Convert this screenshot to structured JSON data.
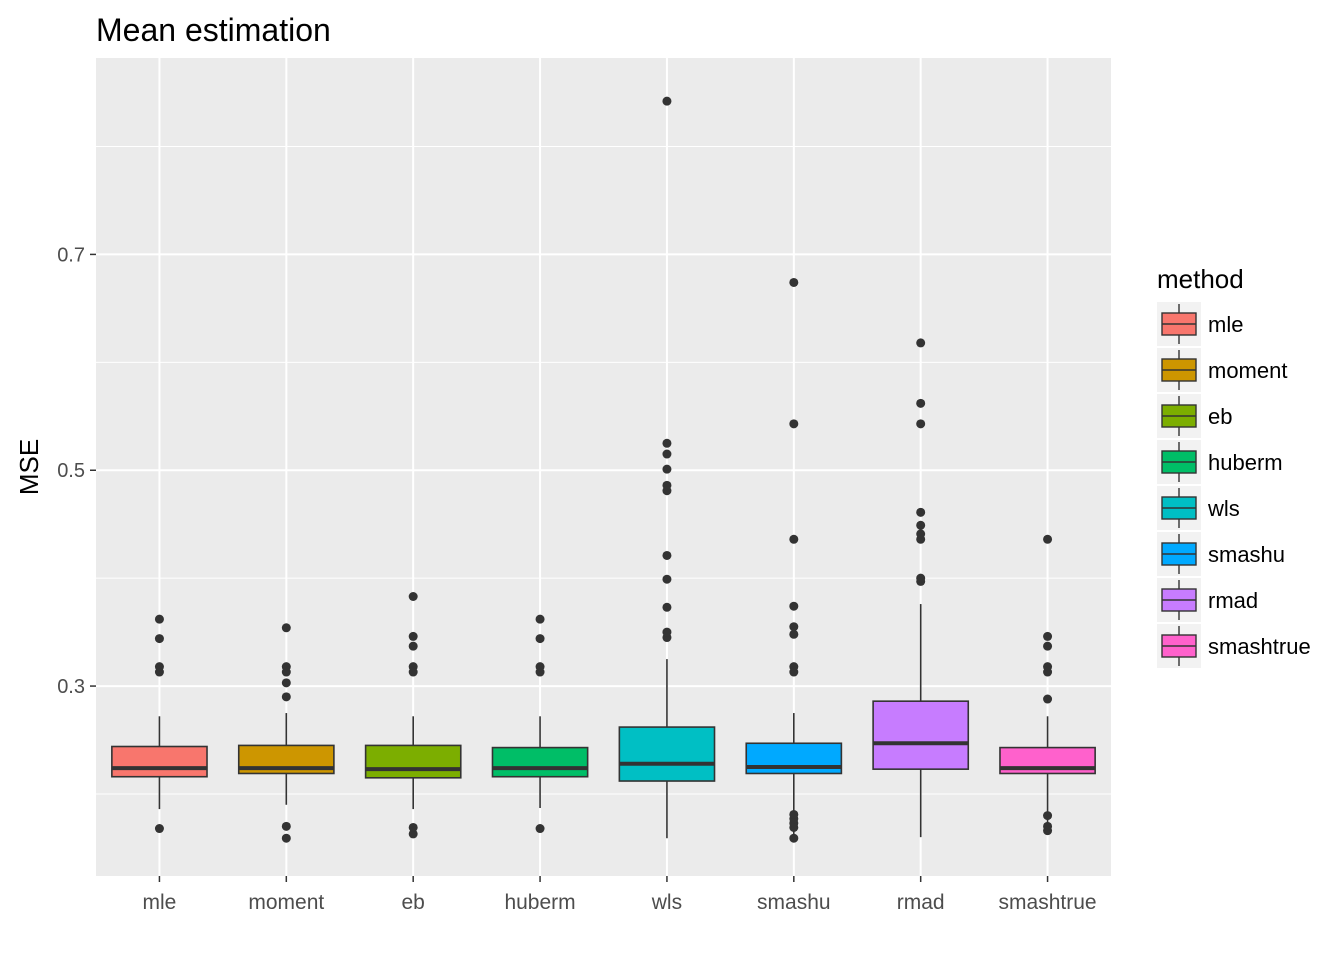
{
  "chart_data": {
    "type": "boxplot",
    "title": "Mean estimation",
    "xlabel": "",
    "ylabel": "MSE",
    "ylim": [
      0.124,
      0.882
    ],
    "y_ticks": [
      0.3,
      0.5,
      0.7
    ],
    "y_tick_labels": [
      "0.3",
      "0.5",
      "0.7"
    ],
    "y_minor_ticks": [
      0.2,
      0.4,
      0.6,
      0.8
    ],
    "grid": true,
    "legend": {
      "title": "method",
      "position": "right"
    },
    "categories": [
      "mle",
      "moment",
      "eb",
      "huberm",
      "wls",
      "smashu",
      "rmad",
      "smashtrue"
    ],
    "series": [
      {
        "name": "mle",
        "color": "#F8766D",
        "whisker_low": 0.186,
        "q1": 0.216,
        "median": 0.224,
        "q3": 0.244,
        "whisker_high": 0.272,
        "outliers": [
          0.168,
          0.313,
          0.318,
          0.344,
          0.362
        ]
      },
      {
        "name": "moment",
        "color": "#CD9600",
        "whisker_low": 0.19,
        "q1": 0.219,
        "median": 0.224,
        "q3": 0.245,
        "whisker_high": 0.275,
        "outliers": [
          0.159,
          0.17,
          0.29,
          0.303,
          0.313,
          0.318,
          0.354
        ]
      },
      {
        "name": "eb",
        "color": "#7CAE00",
        "whisker_low": 0.186,
        "q1": 0.215,
        "median": 0.223,
        "q3": 0.245,
        "whisker_high": 0.272,
        "outliers": [
          0.163,
          0.169,
          0.313,
          0.318,
          0.337,
          0.346,
          0.383
        ]
      },
      {
        "name": "huberm",
        "color": "#00BE67",
        "whisker_low": 0.187,
        "q1": 0.216,
        "median": 0.224,
        "q3": 0.243,
        "whisker_high": 0.272,
        "outliers": [
          0.168,
          0.313,
          0.318,
          0.344,
          0.362
        ]
      },
      {
        "name": "wls",
        "color": "#00BFC4",
        "whisker_low": 0.159,
        "q1": 0.212,
        "median": 0.228,
        "q3": 0.262,
        "whisker_high": 0.325,
        "outliers": [
          0.345,
          0.35,
          0.373,
          0.399,
          0.421,
          0.481,
          0.486,
          0.501,
          0.515,
          0.525,
          0.842
        ]
      },
      {
        "name": "smashu",
        "color": "#00A9FF",
        "whisker_low": 0.159,
        "q1": 0.219,
        "median": 0.225,
        "q3": 0.247,
        "whisker_high": 0.275,
        "outliers": [
          0.159,
          0.169,
          0.173,
          0.177,
          0.181,
          0.313,
          0.318,
          0.348,
          0.355,
          0.374,
          0.436,
          0.543,
          0.674
        ]
      },
      {
        "name": "rmad",
        "color": "#C77CFF",
        "whisker_low": 0.16,
        "q1": 0.223,
        "median": 0.247,
        "q3": 0.286,
        "whisker_high": 0.376,
        "outliers": [
          0.397,
          0.4,
          0.436,
          0.441,
          0.449,
          0.461,
          0.543,
          0.562,
          0.618
        ]
      },
      {
        "name": "smashtrue",
        "color": "#FF61CC",
        "whisker_low": 0.166,
        "q1": 0.219,
        "median": 0.224,
        "q3": 0.243,
        "whisker_high": 0.272,
        "outliers": [
          0.166,
          0.17,
          0.18,
          0.288,
          0.313,
          0.318,
          0.337,
          0.346,
          0.436
        ]
      }
    ]
  }
}
